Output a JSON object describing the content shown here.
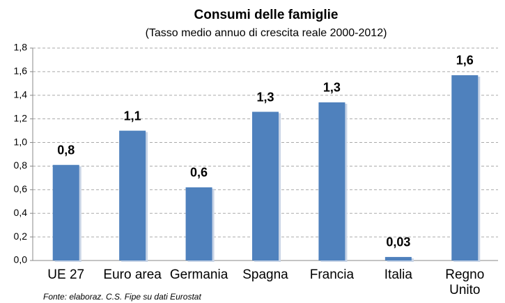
{
  "chart_data": {
    "type": "bar",
    "title": "Consumi  delle famiglie",
    "subtitle": "(Tasso medio annuo di  crescita reale 2000-2012)",
    "source": "Fonte: elaboraz. C.S. Fipe su dati Eurostat",
    "categories": [
      "UE 27",
      "Euro area",
      "Germania",
      "Spagna",
      "Francia",
      "Italia",
      "Regno Unito"
    ],
    "values": [
      0.81,
      1.1,
      0.62,
      1.26,
      1.34,
      0.03,
      1.57
    ],
    "value_labels": [
      "0,8",
      "1,1",
      "0,6",
      "1,3",
      "1,3",
      "0,03",
      "1,6"
    ],
    "color": "#4f81bd",
    "ylim": [
      0,
      1.8
    ],
    "yticks": [
      {
        "value": 0,
        "label": "0,0"
      },
      {
        "value": 0.2,
        "label": "0,2"
      },
      {
        "value": 0.4,
        "label": "0,4"
      },
      {
        "value": 0.6,
        "label": "0,6"
      },
      {
        "value": 0.8,
        "label": "0,8"
      },
      {
        "value": 1.0,
        "label": "1,0"
      },
      {
        "value": 1.2,
        "label": "1,2"
      },
      {
        "value": 1.4,
        "label": "1,4"
      },
      {
        "value": 1.6,
        "label": "1,6"
      },
      {
        "value": 1.8,
        "label": "1,8"
      }
    ],
    "grid": true
  }
}
